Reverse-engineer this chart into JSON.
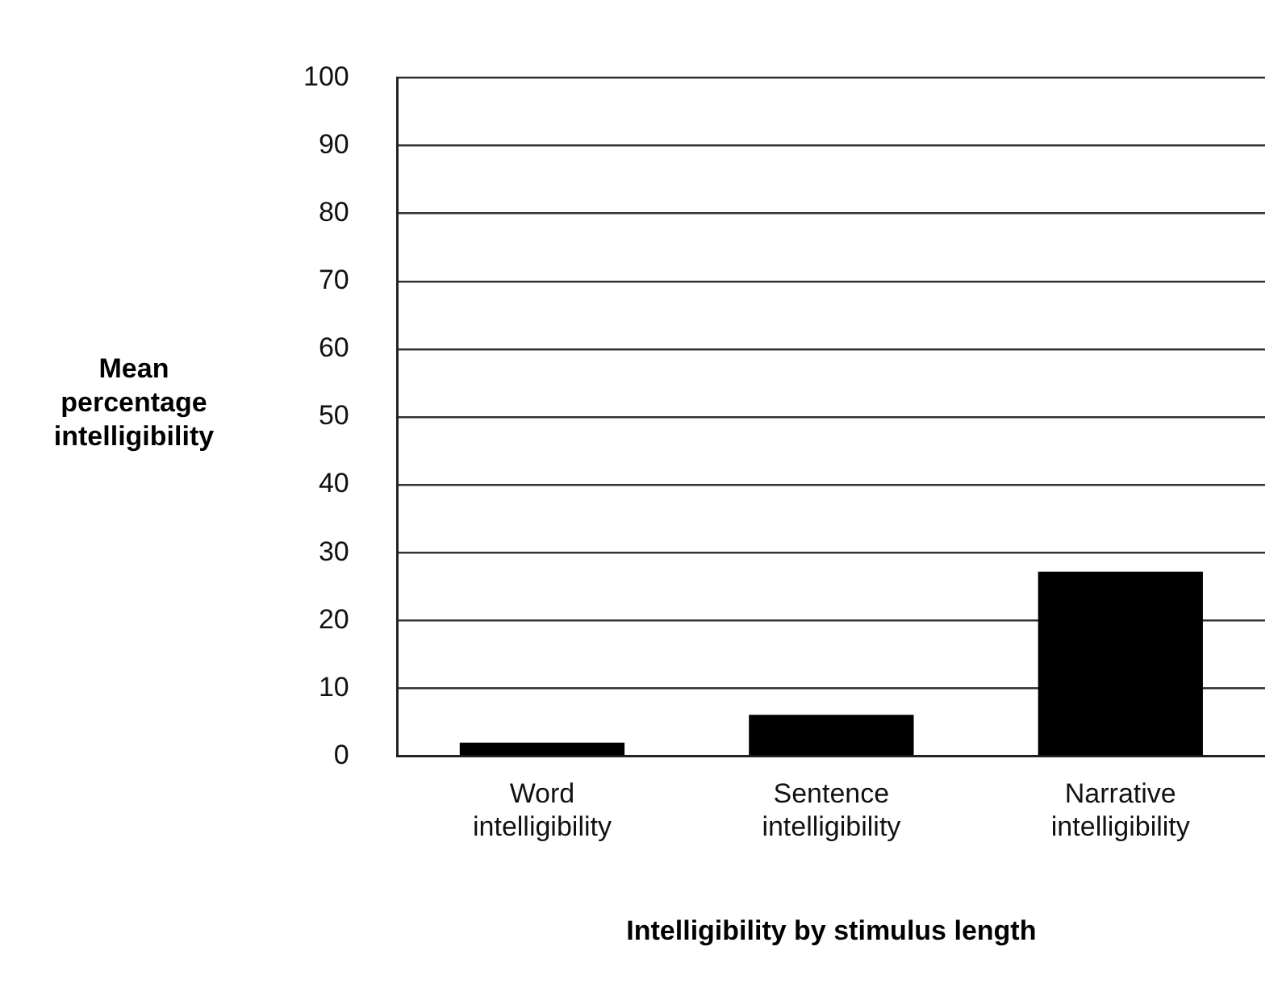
{
  "chart_data": {
    "type": "bar",
    "xlabel": "Intelligibility by stimulus length",
    "ylabel": "Mean percentage intelligibility",
    "categories": [
      "Word intelligibility",
      "Sentence intelligibility",
      "Narrative intelligibility"
    ],
    "values": [
      2,
      6.1,
      27.2
    ],
    "color": "#000000",
    "ylim": [
      0,
      100
    ],
    "yticks": [
      0,
      10,
      20,
      30,
      40,
      50,
      60,
      70,
      80,
      90,
      100
    ],
    "grid": "y",
    "legend": false
  }
}
